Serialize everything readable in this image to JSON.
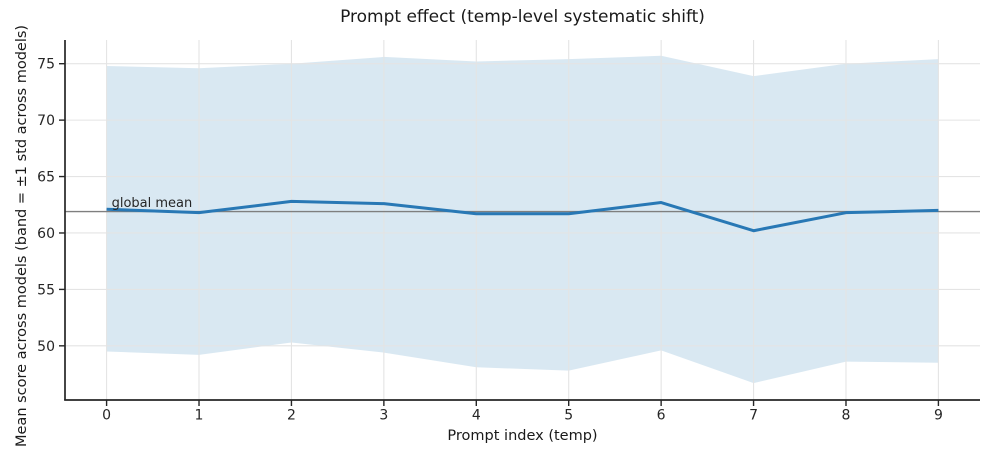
{
  "figure": {
    "title": "Prompt effect (temp-level systematic shift)",
    "xlabel": "Prompt index (temp)",
    "ylabel": "Mean score across models (band = ±1 std across models)"
  },
  "chart_data": {
    "type": "line",
    "title": "Prompt effect (temp-level systematic shift)",
    "xlabel": "Prompt index (temp)",
    "ylabel": "Mean score across models (band = ±1 std across models)",
    "x": [
      0,
      1,
      2,
      3,
      4,
      5,
      6,
      7,
      8,
      9
    ],
    "series": [
      {
        "name": "mean score across models",
        "values": [
          62.1,
          61.8,
          62.8,
          62.6,
          61.7,
          61.7,
          62.7,
          60.2,
          61.8,
          62.0
        ]
      },
      {
        "name": "band upper (+1 std)",
        "values": [
          74.8,
          74.6,
          75.0,
          75.6,
          75.2,
          75.4,
          75.7,
          73.9,
          75.0,
          75.4
        ]
      },
      {
        "name": "band lower (-1 std)",
        "values": [
          49.5,
          49.2,
          50.3,
          49.4,
          48.1,
          47.8,
          49.6,
          46.7,
          48.6,
          48.5
        ]
      }
    ],
    "global_mean": 61.9,
    "annotation": "global mean",
    "xticks": [
      0,
      1,
      2,
      3,
      4,
      5,
      6,
      7,
      8,
      9
    ],
    "yticks": [
      50,
      55,
      60,
      65,
      70,
      75
    ],
    "xlim": [
      -0.45,
      9.45
    ],
    "ylim": [
      45.2,
      77.1
    ],
    "grid": true,
    "legend": "none",
    "colors": {
      "line": "#2878b5",
      "band_fill": "#1f77b4",
      "band_opacity": 0.17,
      "global_mean_line": "#7f7f7f",
      "grid": "#e4e4e4",
      "spine": "#262626",
      "annotation_text": "#595959"
    }
  }
}
